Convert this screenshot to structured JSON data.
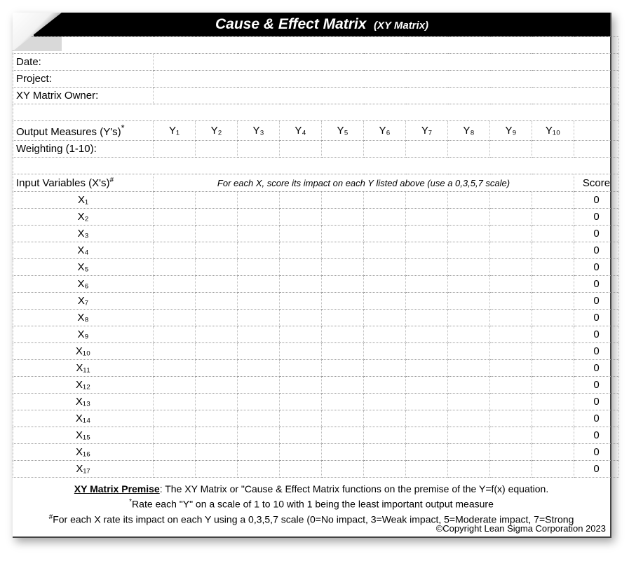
{
  "colors": {
    "header_bg": "#000000",
    "header_fg": "#ffffff",
    "grid_line": "#999999",
    "text": "#000000",
    "page_bg": "#ffffff"
  },
  "header": {
    "title_main": "Cause & Effect Matrix",
    "title_sub": "(XY Matrix)"
  },
  "meta": {
    "date_label": "Date:",
    "date_value": "",
    "project_label": "Project:",
    "project_value": "",
    "owner_label": "XY Matrix Owner:",
    "owner_value": ""
  },
  "output_row": {
    "label": "Output Measures (Y's)",
    "label_sup": "*",
    "y_labels": [
      "Y₁",
      "Y₂",
      "Y₃",
      "Y₄",
      "Y₅",
      "Y₆",
      "Y₇",
      "Y₈",
      "Y₉",
      "Y₁₀"
    ]
  },
  "weighting_row": {
    "label": "Weighting (1-10):",
    "values": [
      "",
      "",
      "",
      "",
      "",
      "",
      "",
      "",
      "",
      ""
    ]
  },
  "input_section": {
    "left_label": "Input Variables (X's)",
    "left_sup": "#",
    "instruction": "For each X, score its impact on each Y listed above (use a 0,3,5,7 scale)",
    "score_header": "Score",
    "rows": [
      {
        "label": "X₁",
        "score": "0"
      },
      {
        "label": "X₂",
        "score": "0"
      },
      {
        "label": "X₃",
        "score": "0"
      },
      {
        "label": "X₄",
        "score": "0"
      },
      {
        "label": "X₅",
        "score": "0"
      },
      {
        "label": "X₆",
        "score": "0"
      },
      {
        "label": "X₇",
        "score": "0"
      },
      {
        "label": "X₈",
        "score": "0"
      },
      {
        "label": "X₉",
        "score": "0"
      },
      {
        "label": "X₁₀",
        "score": "0"
      },
      {
        "label": "X₁₁",
        "score": "0"
      },
      {
        "label": "X₁₂",
        "score": "0"
      },
      {
        "label": "X₁₃",
        "score": "0"
      },
      {
        "label": "X₁₄",
        "score": "0"
      },
      {
        "label": "X₁₅",
        "score": "0"
      },
      {
        "label": "X₁₆",
        "score": "0"
      },
      {
        "label": "X₁₇",
        "score": "0"
      }
    ]
  },
  "premise": {
    "title": "XY Matrix Premise",
    "line1_rest": ": The XY Matrix or \"Cause & Effect Matrix functions on the premise of the Y=f(x) equation.",
    "line2_sup": "*",
    "line2": "Rate each \"Y\" on a scale of 1 to 10 with 1 being the least important output measure",
    "line3_sup": "#",
    "line3": "For each X rate its impact on each Y using a 0,3,5,7 scale (0=No impact, 3=Weak impact, 5=Moderate impact, 7=Strong"
  },
  "copyright": "©Copyright Lean Sigma Corporation 2023"
}
